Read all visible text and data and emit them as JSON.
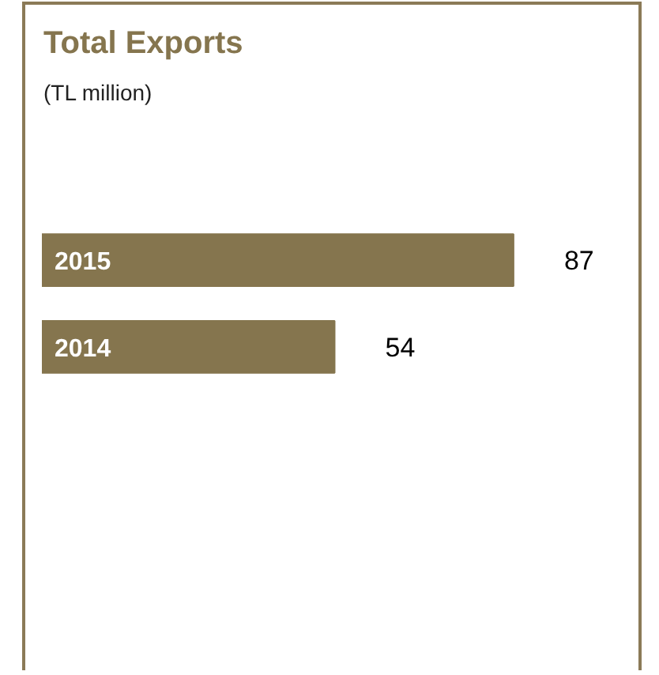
{
  "chart_data": {
    "type": "bar",
    "orientation": "horizontal",
    "title": "Total Exports",
    "subtitle": "(TL million)",
    "categories": [
      "2015",
      "2014"
    ],
    "values": [
      87,
      54
    ],
    "color": "#85754e",
    "data_labels": true,
    "grid": false
  }
}
